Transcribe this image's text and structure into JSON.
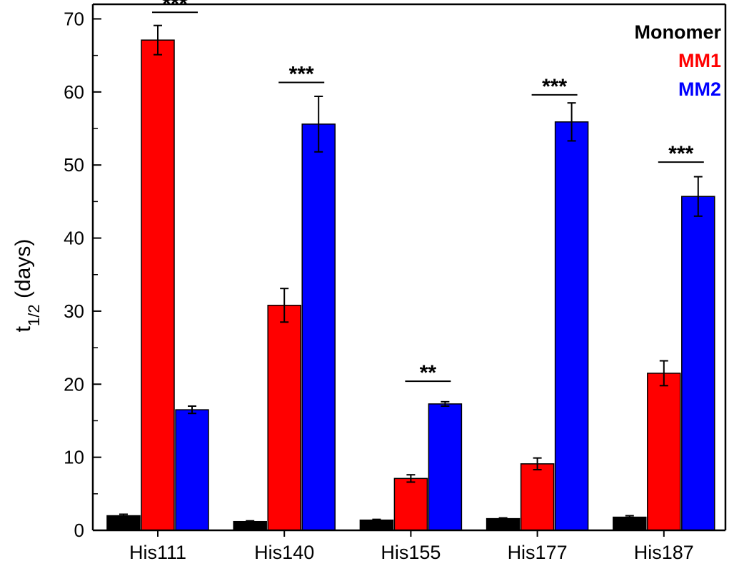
{
  "chart_data": {
    "type": "bar",
    "categories": [
      "His111",
      "His140",
      "His155",
      "His177",
      "His187"
    ],
    "series": [
      {
        "name": "Monomer",
        "color": "#000000",
        "values": [
          2.0,
          1.2,
          1.4,
          1.6,
          1.8
        ],
        "errors": [
          0.2,
          0.1,
          0.1,
          0.1,
          0.2
        ]
      },
      {
        "name": "MM1",
        "color": "#ff0000",
        "values": [
          67.1,
          30.8,
          7.1,
          9.1,
          21.5
        ],
        "errors": [
          2.0,
          2.3,
          0.5,
          0.8,
          1.7
        ]
      },
      {
        "name": "MM2",
        "color": "#0000ff",
        "values": [
          16.5,
          55.6,
          17.3,
          55.9,
          45.7
        ],
        "errors": [
          0.5,
          3.8,
          0.3,
          2.6,
          2.7
        ]
      }
    ],
    "ylabel_main": "t",
    "ylabel_sub": "1/2",
    "ylabel_rest": " (days)",
    "ylim": [
      0,
      72
    ],
    "yticks": [
      0,
      10,
      20,
      30,
      40,
      50,
      60,
      70
    ],
    "legend_position": "top-right",
    "significance": [
      {
        "category": 0,
        "from_series": 1,
        "to_series": 2,
        "y": 70.9,
        "label": "***"
      },
      {
        "category": 1,
        "from_series": 1,
        "to_series": 2,
        "y": 61.3,
        "label": "***"
      },
      {
        "category": 2,
        "from_series": 1,
        "to_series": 2,
        "y": 20.4,
        "label": "**"
      },
      {
        "category": 3,
        "from_series": 1,
        "to_series": 2,
        "y": 59.6,
        "label": "***"
      },
      {
        "category": 4,
        "from_series": 1,
        "to_series": 2,
        "y": 50.4,
        "label": "***"
      }
    ]
  }
}
